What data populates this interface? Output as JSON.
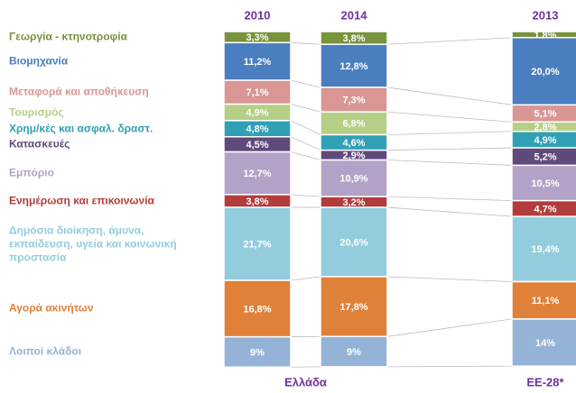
{
  "chart_data": {
    "type": "stacked_bar_100",
    "categories": [
      "2010",
      "2014",
      "2013"
    ],
    "groups": [
      "Ελλάδα",
      "ΕΕ-28*"
    ],
    "ylim": [
      0,
      100
    ],
    "series": [
      {
        "name": "Γεωργία - κτηνοτροφία",
        "color": "#77933c",
        "values": [
          3.3,
          3.8,
          1.8
        ],
        "value_labels": [
          "3,3%",
          "3,8%",
          "1,8%"
        ]
      },
      {
        "name": "Βιομηχανία",
        "color": "#4a7ebf",
        "values": [
          11.2,
          12.8,
          20.0
        ],
        "value_labels": [
          "11,2%",
          "12,8%",
          "20,0%"
        ]
      },
      {
        "name": "Μεταφορά και αποθήκευση",
        "color": "#d99694",
        "values": [
          7.1,
          7.3,
          5.1
        ],
        "value_labels": [
          "7,1%",
          "7,3%",
          "5,1%"
        ]
      },
      {
        "name": "Τουρισμός",
        "color": "#b5cf87",
        "values": [
          4.9,
          6.8,
          2.8
        ],
        "value_labels": [
          "4,9%",
          "6,8%",
          "2,8%"
        ]
      },
      {
        "name": "Χρημ/κές και ασφαλ. δραστ.",
        "color": "#31a0b5",
        "values": [
          4.8,
          4.6,
          4.9
        ],
        "value_labels": [
          "4,8%",
          "4,6%",
          "4,9%"
        ]
      },
      {
        "name": "Κατασκευές",
        "color": "#604a7b",
        "values": [
          4.5,
          2.9,
          5.2
        ],
        "value_labels": [
          "4,5%",
          "2,9%",
          "5,2%"
        ]
      },
      {
        "name": "Εμπόριο",
        "color": "#b3a2c7",
        "values": [
          12.7,
          10.9,
          10.5
        ],
        "value_labels": [
          "12,7%",
          "10,9%",
          "10,5%"
        ]
      },
      {
        "name": "Ενημέρωση και επικοινωνία",
        "color": "#b23c3c",
        "values": [
          3.8,
          3.2,
          4.7
        ],
        "value_labels": [
          "3,8%",
          "3,2%",
          "4,7%"
        ]
      },
      {
        "name": "Δημόσια διοίκηση, άμυνα, εκπαίδευση, υγεία και κοινωνική προστασία",
        "color": "#93cddd",
        "values": [
          21.7,
          20.6,
          19.4
        ],
        "value_labels": [
          "21,7%",
          "20,6%",
          "19,4%"
        ]
      },
      {
        "name": "Αγορά ακινήτων",
        "color": "#e0813a",
        "values": [
          16.8,
          17.8,
          11.1
        ],
        "value_labels": [
          "16,8%",
          "17,8%",
          "11,1%"
        ]
      },
      {
        "name": "Λοιποί κλάδοι",
        "color": "#95b3d7",
        "values": [
          9,
          9,
          14
        ],
        "value_labels": [
          "9%",
          "9%",
          "14%"
        ]
      }
    ]
  }
}
